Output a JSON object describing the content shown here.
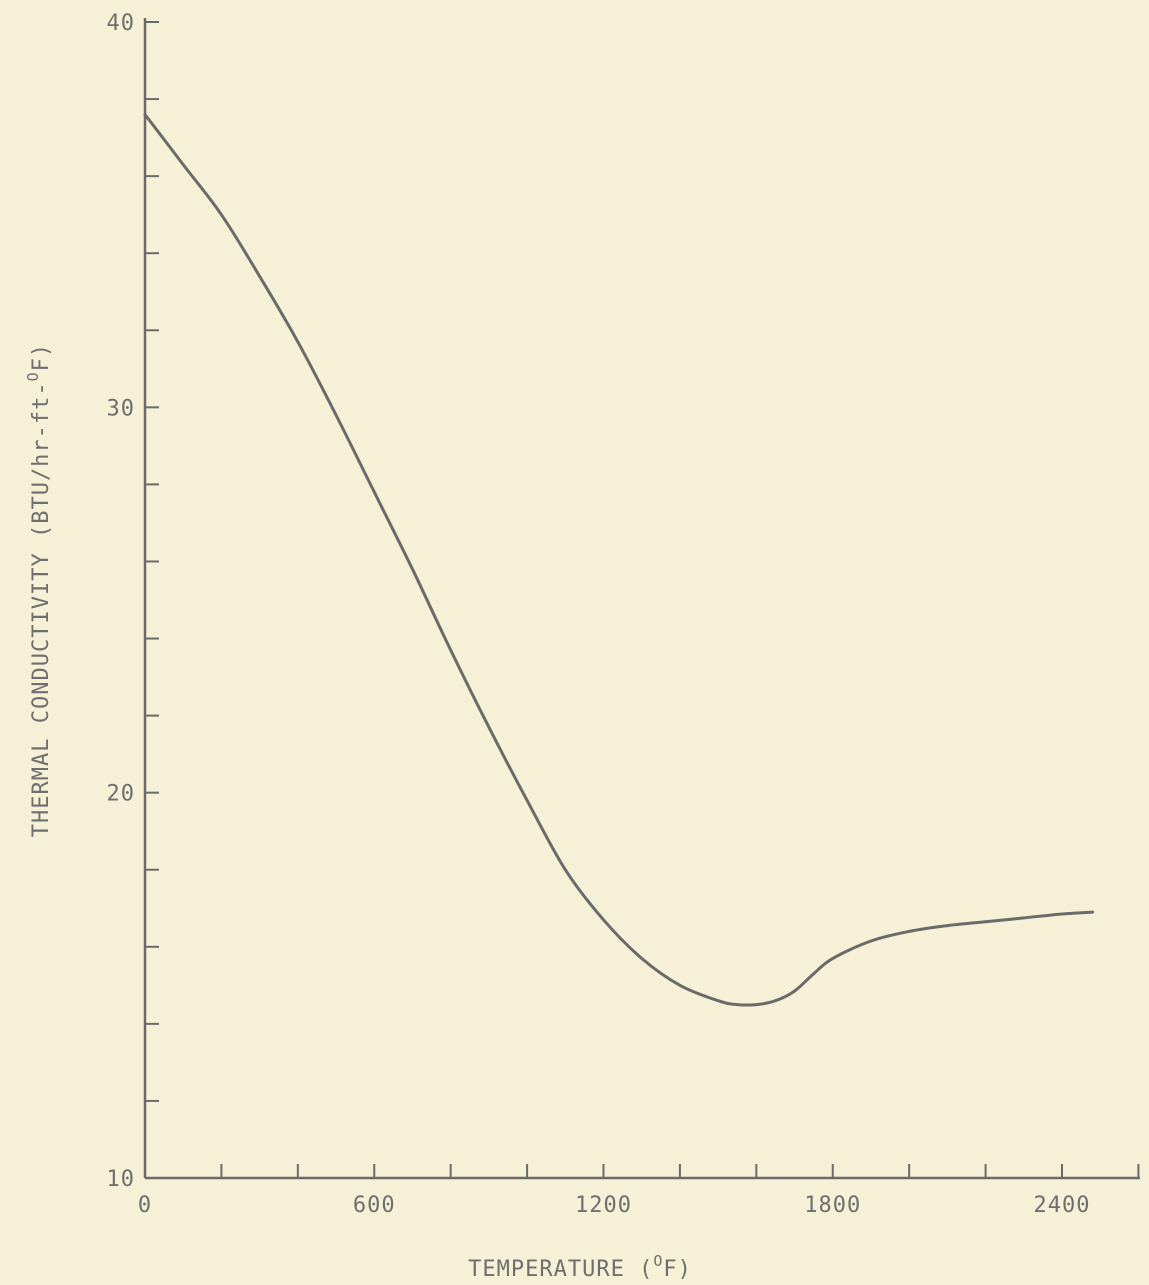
{
  "chart_data": {
    "type": "line",
    "xlabel": "TEMPERATURE (",
    "xlabel_sup": "O",
    "xlabel_unit": "F)",
    "ylabel": "THERMAL CONDUCTIVITY (BTU/hr-ft-",
    "ylabel_sup": "O",
    "ylabel_unit": "F)",
    "xlim": [
      0,
      2600
    ],
    "ylim": [
      10,
      40
    ],
    "x_tick_labels": [
      "0",
      "600",
      "1200",
      "1800",
      "2400"
    ],
    "y_tick_labels": [
      "10",
      "20",
      "30",
      "40"
    ],
    "x_minor_step": 200,
    "y_minor_step": 2,
    "grid": false,
    "series": [
      {
        "x": [
          0,
          100,
          200,
          300,
          400,
          500,
          600,
          700,
          800,
          900,
          1000,
          1100,
          1200,
          1300,
          1400,
          1500,
          1550,
          1600,
          1650,
          1700,
          1750,
          1800,
          1900,
          2000,
          2100,
          2200,
          2300,
          2400,
          2480
        ],
        "y": [
          37.6,
          36.3,
          35.0,
          33.4,
          31.7,
          29.8,
          27.8,
          25.8,
          23.7,
          21.7,
          19.8,
          18.0,
          16.7,
          15.7,
          15.0,
          14.6,
          14.5,
          14.5,
          14.6,
          14.85,
          15.3,
          15.7,
          16.15,
          16.4,
          16.55,
          16.65,
          16.75,
          16.85,
          16.9
        ]
      }
    ]
  }
}
